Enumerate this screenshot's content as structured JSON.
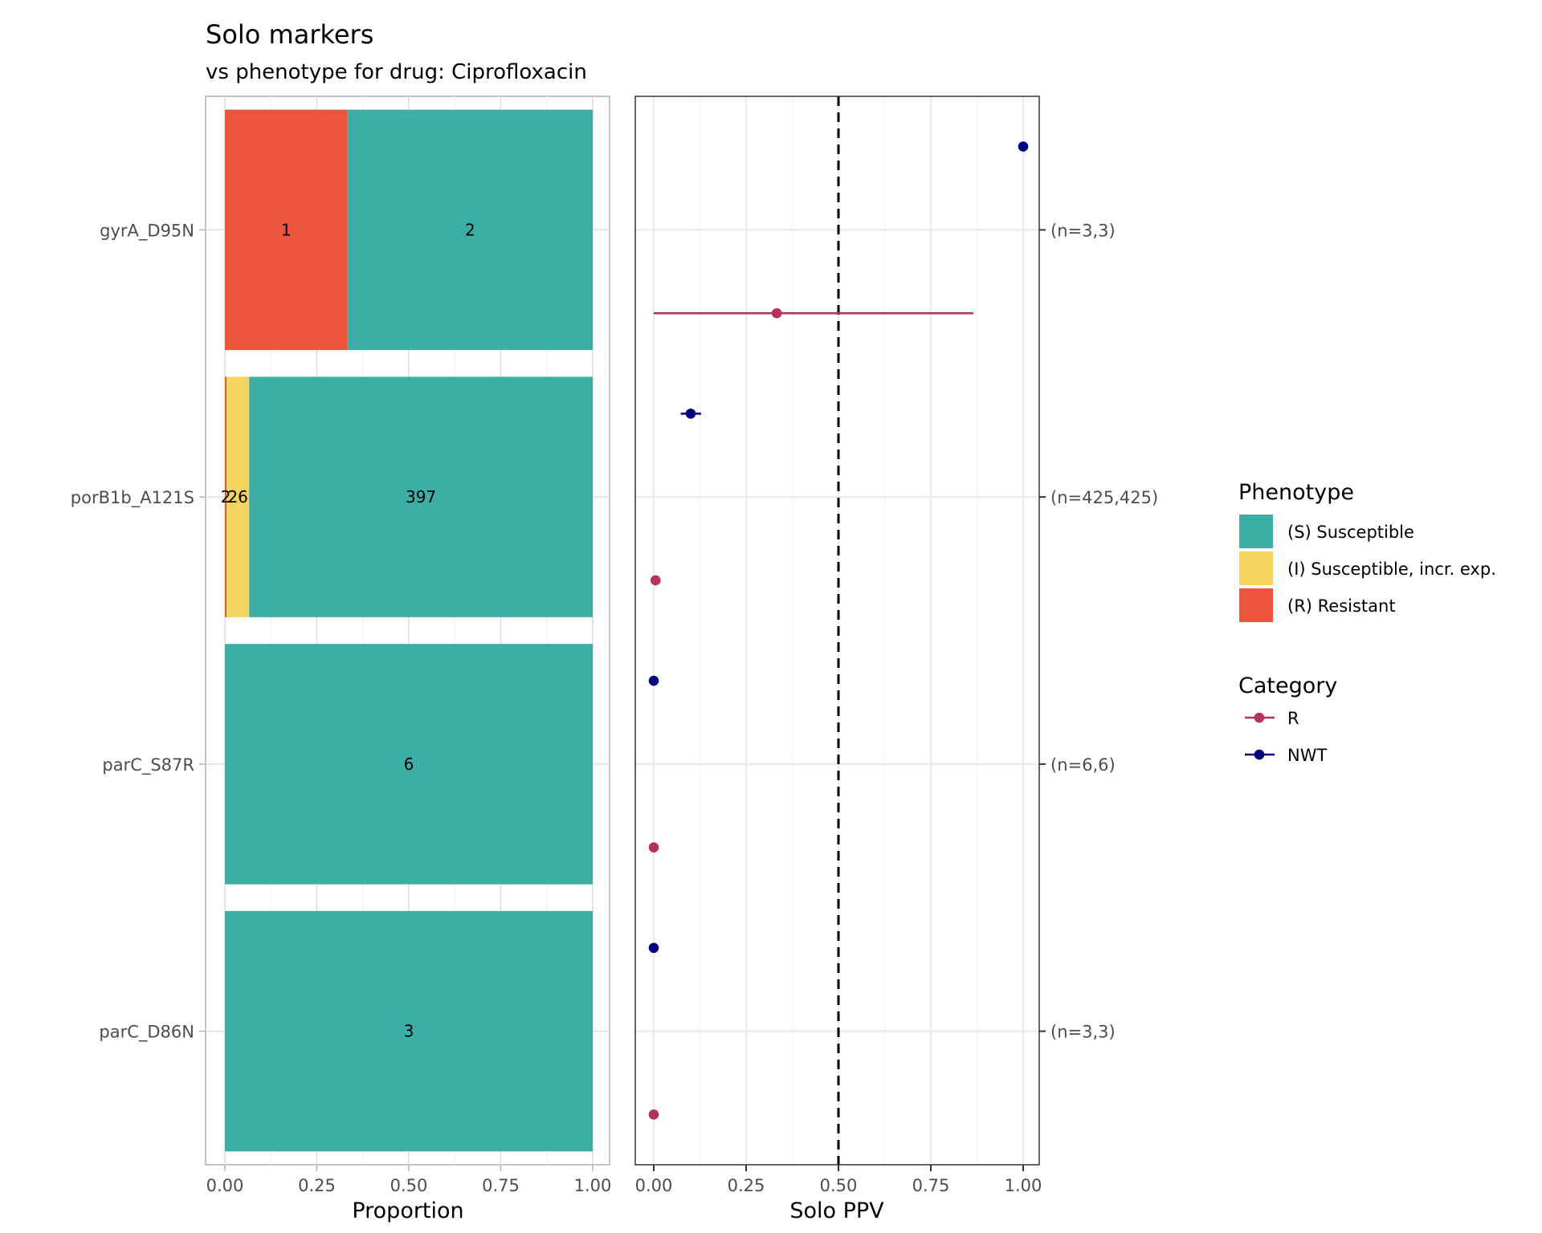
{
  "title": "Solo markers",
  "subtitle": "vs phenotype for drug: Ciprofloxacin",
  "chart_data": [
    {
      "type": "bar",
      "orientation": "horizontal-stacked-proportion",
      "xlabel": "Proportion",
      "ylabel": "",
      "xlim": [
        0,
        1
      ],
      "x_ticks": [
        "0.00",
        "0.25",
        "0.50",
        "0.75",
        "1.00"
      ],
      "categories": [
        "gyrA_D95N",
        "porB1b_A121S",
        "parC_S87R",
        "parC_D86N"
      ],
      "series": [
        {
          "name": "(R) Resistant",
          "key": "R",
          "color": "#EC553C",
          "values": [
            1,
            2,
            0,
            0
          ]
        },
        {
          "name": "(I) Susceptible, incr. exp.",
          "key": "I",
          "color": "#F4D35E",
          "values": [
            0,
            26,
            0,
            0
          ]
        },
        {
          "name": "(S) Susceptible",
          "key": "S",
          "color": "#3DAEA5",
          "values": [
            2,
            397,
            6,
            3
          ]
        }
      ],
      "grid": true
    },
    {
      "type": "scatter",
      "subtype": "point-range",
      "xlabel": "Solo PPV",
      "xlim": [
        0,
        1
      ],
      "x_ticks": [
        "0.00",
        "0.25",
        "0.50",
        "0.75",
        "1.00"
      ],
      "reference_line": {
        "x": 0.5,
        "style": "dashed"
      },
      "categories": [
        "gyrA_D95N",
        "porB1b_A121S",
        "parC_S87R",
        "parC_D86N"
      ],
      "right_labels": [
        "(n=3,3)",
        "(n=425,425)",
        "(n=6,6)",
        "(n=3,3)"
      ],
      "series": [
        {
          "name": "NWT",
          "color": "#000080",
          "points": [
            {
              "category": "gyrA_D95N",
              "value": 1.0,
              "ci": [
                1.0,
                1.0
              ]
            },
            {
              "category": "porB1b_A121S",
              "value": 0.1,
              "ci": [
                0.073,
                0.128
              ]
            },
            {
              "category": "parC_S87R",
              "value": 0.0,
              "ci": [
                0.0,
                0.0
              ]
            },
            {
              "category": "parC_D86N",
              "value": 0.0,
              "ci": [
                0.0,
                0.0
              ]
            }
          ]
        },
        {
          "name": "R",
          "color": "#B5325F",
          "points": [
            {
              "category": "gyrA_D95N",
              "value": 0.333,
              "ci": [
                0.0,
                0.865
              ]
            },
            {
              "category": "porB1b_A121S",
              "value": 0.005,
              "ci": [
                0.001,
                0.017
              ]
            },
            {
              "category": "parC_S87R",
              "value": 0.0,
              "ci": [
                0.0,
                0.0
              ]
            },
            {
              "category": "parC_D86N",
              "value": 0.0,
              "ci": [
                0.0,
                0.0
              ]
            }
          ]
        }
      ],
      "grid": true
    }
  ],
  "legend": {
    "placement": "right",
    "phenotype": {
      "title": "Phenotype",
      "items": [
        {
          "label": "(S) Susceptible",
          "color": "#3DAEA5"
        },
        {
          "label": "(I) Susceptible, incr. exp.",
          "color": "#F4D35E"
        },
        {
          "label": "(R) Resistant",
          "color": "#EC553C"
        }
      ]
    },
    "category": {
      "title": "Category",
      "items": [
        {
          "label": "R",
          "color": "#B5325F"
        },
        {
          "label": "NWT",
          "color": "#000080"
        }
      ]
    }
  }
}
